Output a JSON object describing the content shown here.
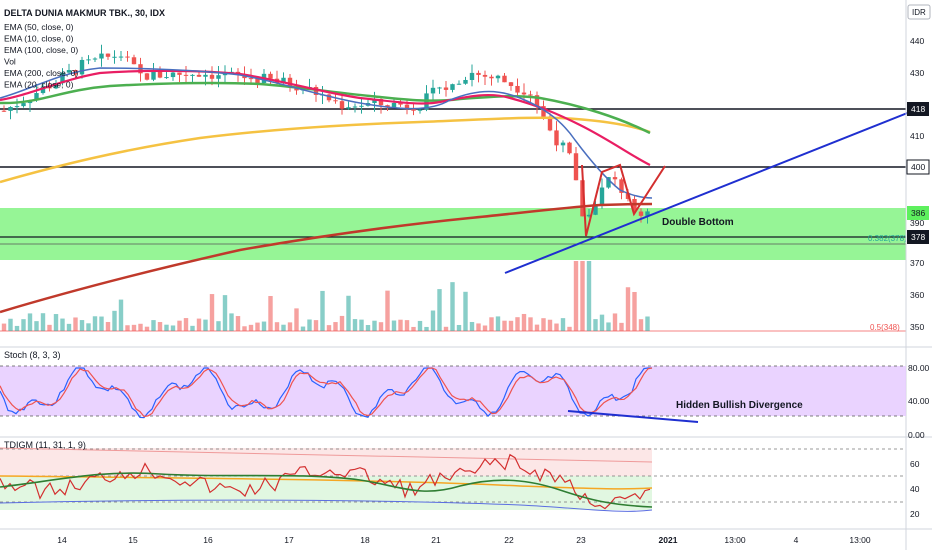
{
  "window": {
    "symbol_title": "DELTA DUNIA MAKMUR TBK., 30, IDX",
    "currency": "IDR"
  },
  "indicators_main": [
    "EMA (50, close, 0)",
    "EMA (10, close, 0)",
    "EMA (100, close, 0)",
    "Vol",
    "EMA (200, close, 0)",
    "EMA (20, close, 0)"
  ],
  "stoch": {
    "legend": "Stoch (8, 3, 3)",
    "annotation": "Hidden Bullish Divergence"
  },
  "tdi": {
    "legend": "TDIGM (11, 31, 1, 9)"
  },
  "annotations": {
    "double_bottom": "Double Bottom",
    "fib_0382": "0.382(378)",
    "fib_05": "0.5(348)"
  },
  "price_axis": {
    "ticks": [
      "440",
      "430",
      "410",
      "390",
      "370",
      "360",
      "350"
    ],
    "badges": [
      {
        "label": "418",
        "style": "dark"
      },
      {
        "label": "400",
        "style": "outline"
      },
      {
        "label": "386",
        "style": "green"
      },
      {
        "label": "378",
        "style": "dark"
      }
    ]
  },
  "stoch_axis": {
    "ticks": [
      "80.00",
      "40.00",
      "0.00"
    ]
  },
  "tdi_axis": {
    "ticks": [
      "60",
      "40",
      "20"
    ]
  },
  "time_axis": [
    "14",
    "15",
    "16",
    "17",
    "18",
    "21",
    "22",
    "23",
    "2021",
    "13:00",
    "4",
    "13:00"
  ],
  "chart_data": {
    "type": "candlestick",
    "title": "DELTA DUNIA MAKMUR TBK., 30, IDX",
    "price_unit": "IDR",
    "horizontal_levels": [
      418,
      400,
      378
    ],
    "support_zone": [
      371,
      388
    ],
    "double_bottom_lows": [
      380,
      385
    ],
    "volume_present": true,
    "stoch_levels": [
      80,
      20
    ],
    "tdi_levels": [
      68,
      50,
      32
    ],
    "price_ylim": [
      345,
      448
    ],
    "grid": false,
    "legend": "top-left"
  },
  "colors": {
    "up": "#26a69a",
    "down": "#ef5350",
    "ema50": "#4caf50",
    "ema10": "#4a6fbf",
    "ema100": "#f5c242",
    "ema200": "#c0392b",
    "ema20": "#e91e63",
    "trendline": "#1f2fd0",
    "zone": "#5ef05e",
    "stoch_bg": "#e6cbff"
  }
}
